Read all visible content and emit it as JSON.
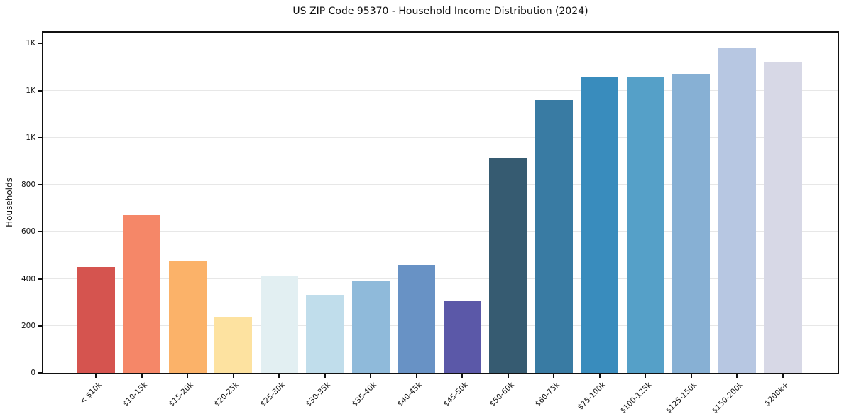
{
  "title": "US ZIP Code 95370 - Household Income Distribution (2024)",
  "chart_data": {
    "type": "bar",
    "title": "US ZIP Code 95370 - Household Income Distribution (2024)",
    "xlabel": "",
    "ylabel": "Households",
    "ylim": [
      0,
      1446
    ],
    "grid": "horizontal-light",
    "legend": "none",
    "categories": [
      "< $10k",
      "$10-15k",
      "$15-20k",
      "$20-25k",
      "$25-30k",
      "$30-35k",
      "$35-40k",
      "$40-45k",
      "$45-50k",
      "$50-60k",
      "$60-75k",
      "$75-100k",
      "$100-125k",
      "$125-150k",
      "$150-200k",
      "$200k+"
    ],
    "values": [
      450,
      670,
      475,
      235,
      410,
      330,
      390,
      460,
      305,
      915,
      1160,
      1255,
      1260,
      1270,
      1380,
      1320
    ],
    "bar_colors": [
      "#d5544f",
      "#f58768",
      "#fbb269",
      "#fde2a0",
      "#e2eff2",
      "#c0ddeb",
      "#8fbada",
      "#6892c5",
      "#5b58a8",
      "#365b71",
      "#397ba3",
      "#398cbd",
      "#55a0c8",
      "#87b0d4",
      "#b7c7e2",
      "#d7d8e6"
    ],
    "y_ticks": [
      {
        "value": 0,
        "label": "0"
      },
      {
        "value": 200,
        "label": "200"
      },
      {
        "value": 400,
        "label": "400"
      },
      {
        "value": 600,
        "label": "600"
      },
      {
        "value": 800,
        "label": "800"
      },
      {
        "value": 1000,
        "label": "1K"
      },
      {
        "value": 1200,
        "label": "1K"
      },
      {
        "value": 1400,
        "label": "1K"
      }
    ]
  },
  "colors": {
    "spine": "#111111",
    "gridline": "#e7e7e7",
    "background": "#ffffff",
    "text": "#111111"
  }
}
